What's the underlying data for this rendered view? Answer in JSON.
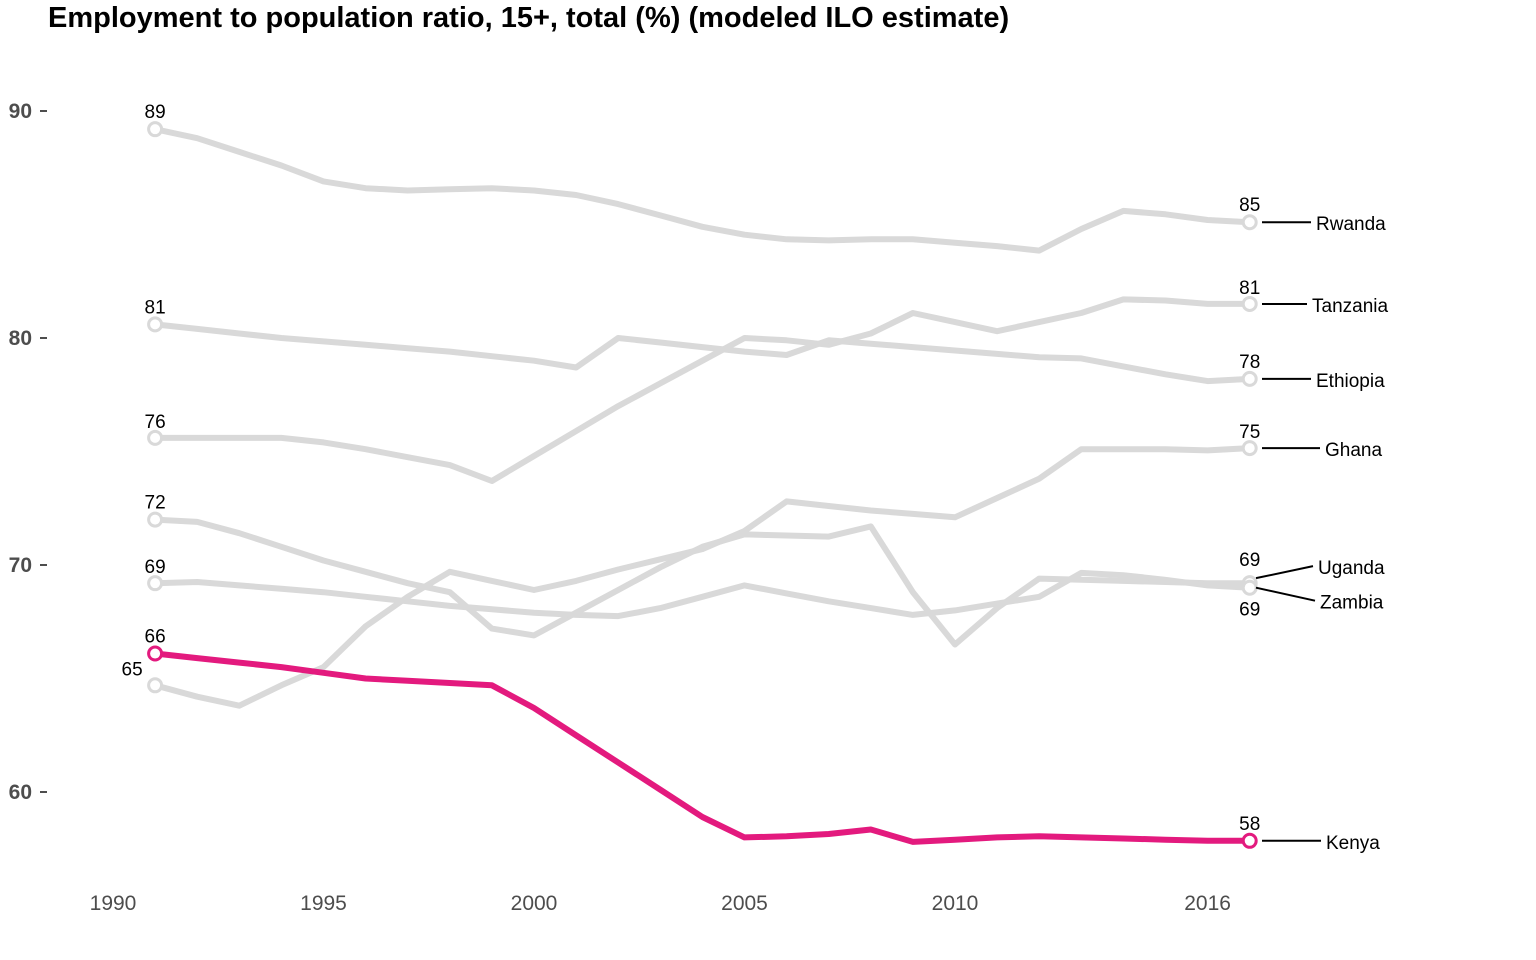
{
  "chart_data": {
    "type": "line",
    "title": "Employment to population ratio, 15+, total (%) (modeled ILO estimate)",
    "xlabel": "",
    "ylabel": "",
    "xlim": [
      1989.8,
      2019.5
    ],
    "ylim": [
      56.5,
      92
    ],
    "x_ticks": [
      1990,
      1995,
      2000,
      2005,
      2010,
      2016
    ],
    "y_ticks": [
      60,
      70,
      80,
      90
    ],
    "grid": false,
    "legend": "none",
    "colors": {
      "highlight": "#e31a7e",
      "other": "#d9d9d9",
      "tick": "#4d4d4d"
    },
    "x": [
      1991,
      1992,
      1993,
      1994,
      1995,
      1996,
      1997,
      1998,
      1999,
      2000,
      2001,
      2002,
      2003,
      2004,
      2005,
      2006,
      2007,
      2008,
      2009,
      2010,
      2011,
      2012,
      2013,
      2014,
      2015,
      2016,
      2017
    ],
    "series": [
      {
        "name": "Rwanda",
        "highlight": false,
        "values": [
          89.2,
          88.8,
          88.2,
          87.6,
          86.9,
          86.6,
          86.5,
          86.55,
          86.6,
          86.5,
          86.3,
          85.9,
          85.4,
          84.9,
          84.55,
          84.35,
          84.3,
          84.35,
          84.35,
          84.2,
          84.05,
          83.85,
          84.8,
          85.6,
          85.45,
          85.2,
          85.1
        ],
        "start_label": "89",
        "end_label": "85"
      },
      {
        "name": "Tanzania",
        "highlight": false,
        "values": [
          75.6,
          75.6,
          75.6,
          75.6,
          75.4,
          75.1,
          74.75,
          74.4,
          73.7,
          74.8,
          75.9,
          77.0,
          78.0,
          79.0,
          80.0,
          79.9,
          79.7,
          80.2,
          81.1,
          80.7,
          80.3,
          80.7,
          81.1,
          81.7,
          81.65,
          81.5,
          81.5
        ],
        "start_label": "76",
        "end_label": "81"
      },
      {
        "name": "Ethiopia",
        "highlight": false,
        "values": [
          80.6,
          80.4,
          80.2,
          80.0,
          79.85,
          79.7,
          79.55,
          79.4,
          79.2,
          79.0,
          78.7,
          80.0,
          79.8,
          79.6,
          79.4,
          79.25,
          79.9,
          79.75,
          79.6,
          79.45,
          79.3,
          79.15,
          79.1,
          78.75,
          78.4,
          78.1,
          78.2
        ],
        "start_label": "81",
        "end_label": "78"
      },
      {
        "name": "Ghana",
        "highlight": false,
        "values": [
          64.7,
          64.2,
          63.8,
          64.7,
          65.5,
          67.3,
          68.6,
          69.7,
          69.3,
          68.9,
          69.3,
          69.8,
          70.25,
          70.7,
          71.5,
          72.8,
          72.6,
          72.4,
          72.25,
          72.1,
          72.95,
          73.8,
          75.1,
          75.1,
          75.1,
          75.05,
          75.15
        ],
        "start_label": "65",
        "end_label": "75"
      },
      {
        "name": "Uganda",
        "highlight": false,
        "values": [
          72.0,
          71.9,
          71.4,
          70.8,
          70.2,
          69.7,
          69.2,
          68.8,
          67.2,
          66.9,
          67.9,
          68.9,
          69.9,
          70.8,
          71.35,
          71.3,
          71.25,
          71.7,
          68.8,
          66.5,
          68.1,
          69.4,
          69.35,
          69.3,
          69.25,
          69.2,
          69.2
        ],
        "start_label": "72",
        "end_label": "69"
      },
      {
        "name": "Zambia",
        "highlight": false,
        "values": [
          69.2,
          69.25,
          69.1,
          68.95,
          68.8,
          68.6,
          68.4,
          68.2,
          68.05,
          67.9,
          67.8,
          67.75,
          68.1,
          68.6,
          69.1,
          68.75,
          68.4,
          68.1,
          67.8,
          68.0,
          68.3,
          68.6,
          69.65,
          69.55,
          69.35,
          69.1,
          69.0
        ],
        "start_label": "69",
        "end_label": "69"
      },
      {
        "name": "Kenya",
        "highlight": true,
        "values": [
          66.1,
          65.9,
          65.7,
          65.5,
          65.25,
          65.0,
          64.9,
          64.8,
          64.7,
          63.7,
          62.5,
          61.3,
          60.1,
          58.9,
          58.0,
          58.05,
          58.15,
          58.35,
          57.8,
          57.9,
          58.0,
          58.05,
          58.0,
          57.95,
          57.9,
          57.85,
          57.85
        ],
        "start_label": "66",
        "end_label": "58"
      }
    ]
  }
}
